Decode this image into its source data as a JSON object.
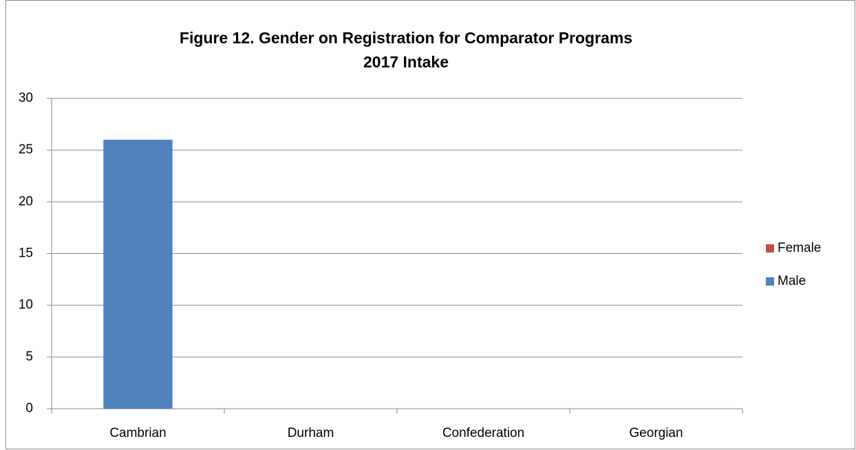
{
  "chart_data": {
    "type": "stacked_bar",
    "title": [
      "Figure 12.  Gender on Registration for Comparator Programs",
      "2017 Intake"
    ],
    "categories": [
      "Cambrian",
      "Durham",
      "Confederation",
      "Georgian"
    ],
    "series": [
      {
        "name": "Male",
        "color": "#4f81bd",
        "values": [
          26,
          0,
          0,
          0
        ]
      },
      {
        "name": "Female",
        "color": "#c0504d",
        "values": [
          0,
          0,
          0,
          0
        ]
      }
    ],
    "ylim": [
      0,
      30
    ],
    "yticks": [
      0,
      5,
      10,
      15,
      20,
      25,
      30
    ],
    "grid": true,
    "legend": "right"
  }
}
